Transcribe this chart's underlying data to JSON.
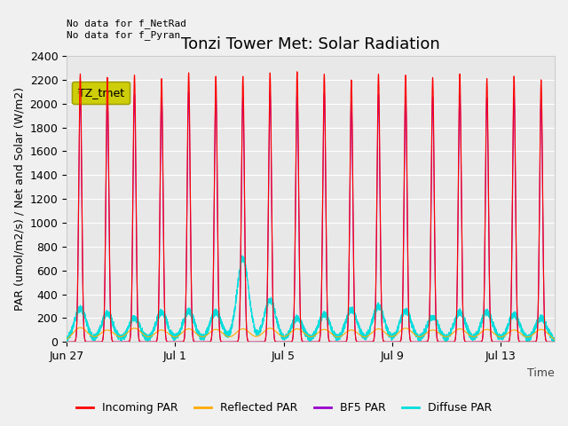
{
  "title": "Tonzi Tower Met: Solar Radiation",
  "xlabel": "Time",
  "ylabel": "PAR (umol/m2/s) / Net and Solar (W/m2)",
  "ylim": [
    0,
    2400
  ],
  "yticks": [
    0,
    200,
    400,
    600,
    800,
    1000,
    1200,
    1400,
    1600,
    1800,
    2000,
    2200,
    2400
  ],
  "xtick_labels": [
    "Jun 27",
    "Jul 1",
    "Jul 5",
    "Jul 9",
    "Jul 13"
  ],
  "xtick_positions": [
    0,
    4,
    8,
    12,
    16
  ],
  "annotation_text": "No data for f_NetRad\nNo data for f_Pyran",
  "legend_label": "TZ_tmet",
  "legend_bg": "#cccc00",
  "legend_edge": "#999900",
  "incoming_color": "#ff0000",
  "reflected_color": "#ffaa00",
  "bfs_color": "#9900cc",
  "diffuse_color": "#00dddd",
  "background_color": "#e8e8e8",
  "n_days": 18,
  "peak_incoming": 2250,
  "peak_reflected": 130,
  "peak_bfs": 2050,
  "peak_diffuse": 300,
  "title_fontsize": 13,
  "axis_label_fontsize": 9,
  "tick_fontsize": 9
}
